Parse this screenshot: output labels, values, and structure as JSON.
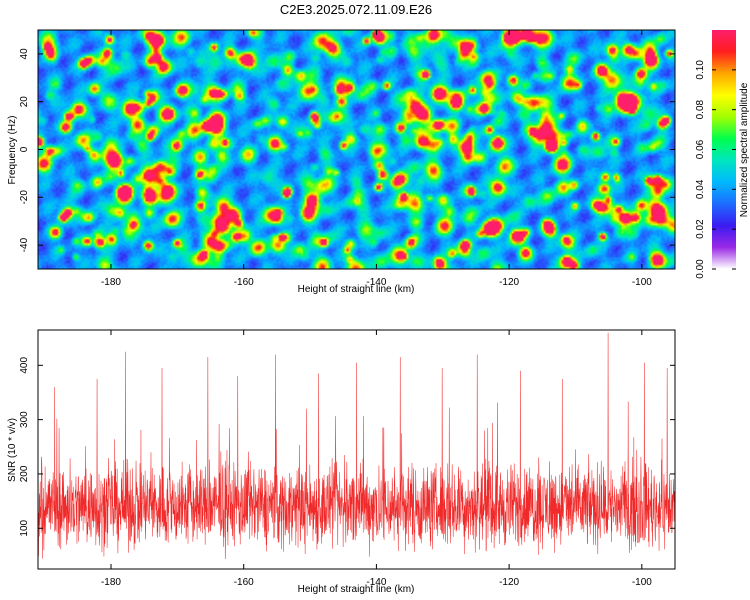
{
  "title": "C2E3.2025.072.11.09.E26",
  "chart_data": [
    {
      "type": "heatmap",
      "xlabel": "Height of straight line (km)",
      "ylabel": "Frequency (Hz)",
      "xlim": [
        -191,
        -95
      ],
      "ylim": [
        -50,
        50
      ],
      "xticks": [
        -180,
        -160,
        -140,
        -120,
        -100
      ],
      "yticks": [
        -40,
        -20,
        0,
        20,
        40
      ],
      "colorbar": {
        "label": "Normalized spectral amplitude",
        "range": [
          0.0,
          0.12
        ],
        "ticks": [
          "0.00",
          "0.02",
          "0.04",
          "0.06",
          "0.08",
          "0.10"
        ],
        "tick_values": [
          0.0,
          0.02,
          0.04,
          0.06,
          0.08,
          0.1
        ],
        "colormap": [
          "#ffffff",
          "#9a29e6",
          "#3a1bf2",
          "#1e6cff",
          "#00b9ff",
          "#00e6bf",
          "#00ff4c",
          "#a3ff00",
          "#ffff00",
          "#ffa600",
          "#ff1e1e",
          "#ff1e6b"
        ]
      },
      "field_description_values": {
        "background_level": 0.02,
        "peak_values": [
          0.12,
          0.11,
          0.1,
          0.1,
          0.09,
          0.09
        ]
      }
    },
    {
      "type": "line",
      "xlabel": "Height of straight line (km)",
      "ylabel": "SNR (10 * v/v)",
      "xlim": [
        -191,
        -95
      ],
      "ylim": [
        25,
        465
      ],
      "xticks": [
        -180,
        -160,
        -140,
        -120,
        -100
      ],
      "yticks": [
        100,
        200,
        300,
        400
      ],
      "series": [
        {
          "name": "SNR",
          "color": "#f02a2a",
          "n_points": 2600,
          "mean": 140,
          "spread": 55,
          "min": 30,
          "max": 460,
          "spikes": [
            {
              "x": -188.5,
              "y": 360
            },
            {
              "x": -182.1,
              "y": 375
            },
            {
              "x": -177.8,
              "y": 425
            },
            {
              "x": -172.3,
              "y": 395
            },
            {
              "x": -165.4,
              "y": 415
            },
            {
              "x": -160.9,
              "y": 380
            },
            {
              "x": -155.2,
              "y": 420
            },
            {
              "x": -148.7,
              "y": 385
            },
            {
              "x": -143.0,
              "y": 405
            },
            {
              "x": -136.4,
              "y": 415
            },
            {
              "x": -130.1,
              "y": 395
            },
            {
              "x": -124.8,
              "y": 420
            },
            {
              "x": -118.3,
              "y": 390
            },
            {
              "x": -112.0,
              "y": 375
            },
            {
              "x": -105.1,
              "y": 460
            },
            {
              "x": -99.6,
              "y": 405
            },
            {
              "x": -96.2,
              "y": 395
            }
          ]
        }
      ]
    }
  ]
}
